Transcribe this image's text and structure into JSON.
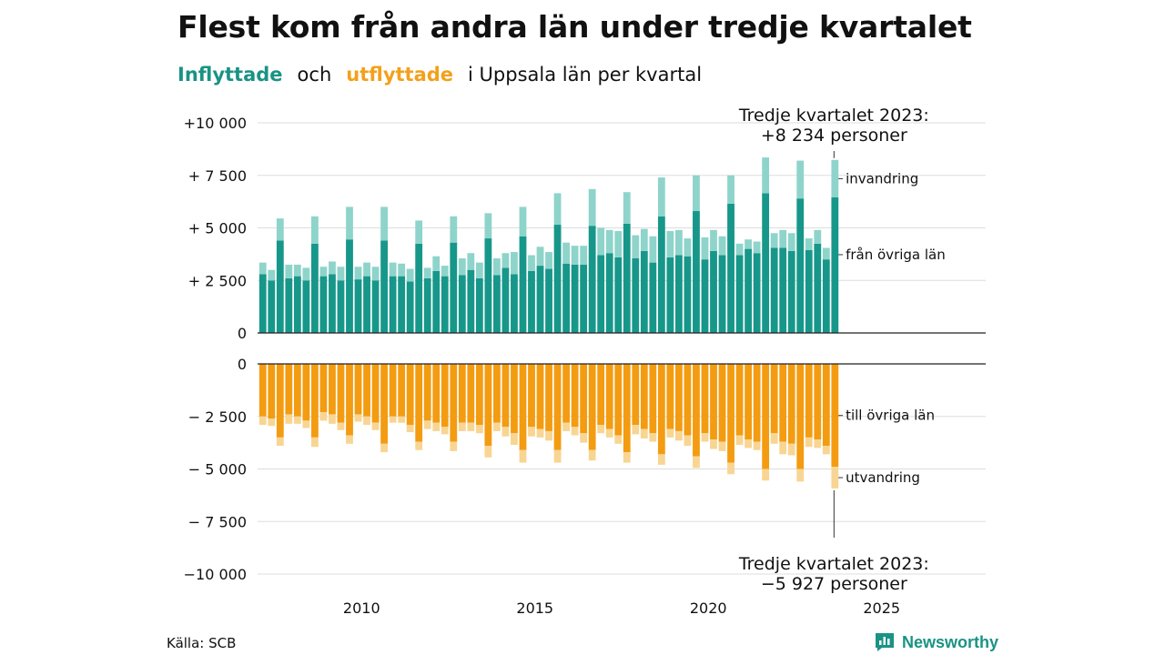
{
  "header": {
    "title": "Flest kom från andra län under tredje kvartalet",
    "subtitle_in": "Inflyttade",
    "subtitle_and": "och",
    "subtitle_out": "utflyttade",
    "subtitle_rest": "i Uppsala  län  per  kvartal"
  },
  "footer": {
    "source": "Källa: SCB",
    "logo": "Newsworthy"
  },
  "colors": {
    "in_domestic": "#17968a",
    "in_immigration": "#8fd4cb",
    "out_domestic": "#f39c12",
    "out_emigration": "#f8d592",
    "grid": "#dddddd",
    "axis": "#222222"
  },
  "chart_data": {
    "type": "bar",
    "stacked": true,
    "x_start": "2007 Q1",
    "x_end": "2023 Q3",
    "xlim": [
      2007,
      2028
    ],
    "ylim_top": [
      0,
      10000
    ],
    "ylim_bottom": [
      -10000,
      0
    ],
    "x_ticks": [
      {
        "value": 2010,
        "label": "2010"
      },
      {
        "value": 2015,
        "label": "2015"
      },
      {
        "value": 2020,
        "label": "2020"
      },
      {
        "value": 2025,
        "label": "2025"
      }
    ],
    "y_ticks_top": [
      {
        "value": 10000,
        "label": "+10 000"
      },
      {
        "value": 7500,
        "label": "+ 7 500"
      },
      {
        "value": 5000,
        "label": "+ 5 000"
      },
      {
        "value": 2500,
        "label": "+ 2 500"
      },
      {
        "value": 0,
        "label": "0"
      }
    ],
    "y_ticks_bottom": [
      {
        "value": 0,
        "label": "0"
      },
      {
        "value": -2500,
        "label": "− 2 500"
      },
      {
        "value": -5000,
        "label": "− 5 000"
      },
      {
        "value": -7500,
        "label": "− 7 500"
      },
      {
        "value": -10000,
        "label": "−10 000"
      }
    ],
    "series_labels": {
      "in_immigration": "invandring",
      "in_domestic": "från övriga län",
      "out_domestic": "till övriga län",
      "out_emigration": "utvandring"
    },
    "in_domestic": [
      2800,
      2500,
      4400,
      2600,
      2700,
      2500,
      4250,
      2700,
      2800,
      2500,
      4450,
      2550,
      2700,
      2500,
      4400,
      2700,
      2700,
      2450,
      4250,
      2600,
      2950,
      2700,
      4300,
      2750,
      3000,
      2600,
      4500,
      2750,
      3100,
      2800,
      4600,
      2950,
      3200,
      3050,
      5150,
      3300,
      3250,
      3250,
      5100,
      3700,
      3800,
      3600,
      5200,
      3550,
      3900,
      3350,
      5550,
      3600,
      3700,
      3650,
      5800,
      3500,
      3900,
      3700,
      6150,
      3700,
      4000,
      3800,
      6650,
      4050,
      4050,
      3900,
      6400,
      3950,
      4250,
      3500,
      6450
    ],
    "in_immigration": [
      550,
      500,
      1050,
      650,
      550,
      600,
      1300,
      450,
      600,
      650,
      1550,
      600,
      650,
      650,
      1600,
      650,
      600,
      600,
      1100,
      500,
      700,
      500,
      1250,
      800,
      800,
      750,
      1200,
      800,
      700,
      1050,
      1400,
      750,
      900,
      800,
      1500,
      1000,
      900,
      900,
      1750,
      1300,
      1100,
      1250,
      1500,
      1100,
      1050,
      1250,
      1850,
      1250,
      1200,
      850,
      1700,
      1050,
      1000,
      900,
      1350,
      550,
      450,
      550,
      1700,
      700,
      850,
      850,
      1800,
      550,
      650,
      550,
      1784
    ],
    "out_domestic": [
      -2500,
      -2600,
      -3500,
      -2400,
      -2500,
      -2700,
      -3500,
      -2300,
      -2400,
      -2800,
      -3400,
      -2400,
      -2500,
      -2800,
      -3800,
      -2500,
      -2500,
      -2900,
      -3700,
      -2700,
      -2800,
      -3000,
      -3700,
      -2800,
      -2800,
      -2900,
      -3900,
      -2800,
      -3000,
      -3300,
      -4100,
      -3000,
      -3100,
      -3200,
      -4100,
      -2800,
      -3000,
      -3300,
      -4100,
      -2900,
      -3100,
      -3400,
      -4200,
      -2900,
      -3100,
      -3300,
      -4300,
      -3100,
      -3200,
      -3400,
      -4400,
      -3300,
      -3600,
      -3700,
      -4700,
      -3400,
      -3600,
      -3700,
      -5000,
      -3300,
      -3700,
      -3800,
      -5000,
      -3500,
      -3600,
      -3900,
      -4900
    ],
    "out_emigration": [
      -400,
      -350,
      -400,
      -450,
      -350,
      -350,
      -450,
      -400,
      -450,
      -350,
      -400,
      -350,
      -400,
      -350,
      -400,
      -300,
      -300,
      -350,
      -400,
      -400,
      -400,
      -350,
      -450,
      -400,
      -400,
      -400,
      -550,
      -400,
      -450,
      -550,
      -600,
      -450,
      -400,
      -450,
      -600,
      -400,
      -400,
      -450,
      -500,
      -400,
      -400,
      -400,
      -500,
      -450,
      -450,
      -400,
      -500,
      -400,
      -450,
      -500,
      -550,
      -400,
      -450,
      -450,
      -550,
      -450,
      -400,
      -400,
      -550,
      -500,
      -600,
      -550,
      -600,
      -450,
      -400,
      -400,
      -1027
    ],
    "annotations": [
      {
        "x": "2023 Q3",
        "line1": "Tredje kvartalet 2023:",
        "line2": "+8 234 personer",
        "position": "top"
      },
      {
        "x": "2023 Q3",
        "line1": "Tredje kvartalet 2023:",
        "line2": "−5 927 personer",
        "position": "bottom"
      }
    ]
  }
}
